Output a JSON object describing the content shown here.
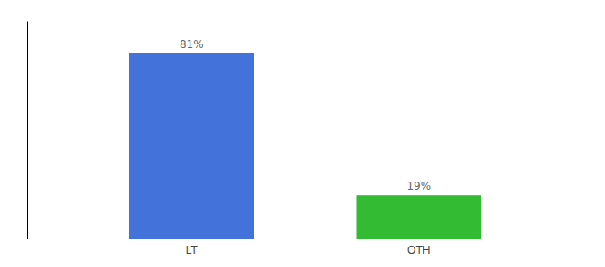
{
  "chart_data": {
    "type": "bar",
    "categories": [
      "LT",
      "OTH"
    ],
    "values": [
      81,
      19
    ],
    "value_labels": [
      "81%",
      "19%"
    ],
    "colors": [
      "#4472db",
      "#33bb33"
    ],
    "ylim": [
      0,
      95
    ],
    "data_labels": true,
    "tick_labels": "x",
    "grid": false
  }
}
